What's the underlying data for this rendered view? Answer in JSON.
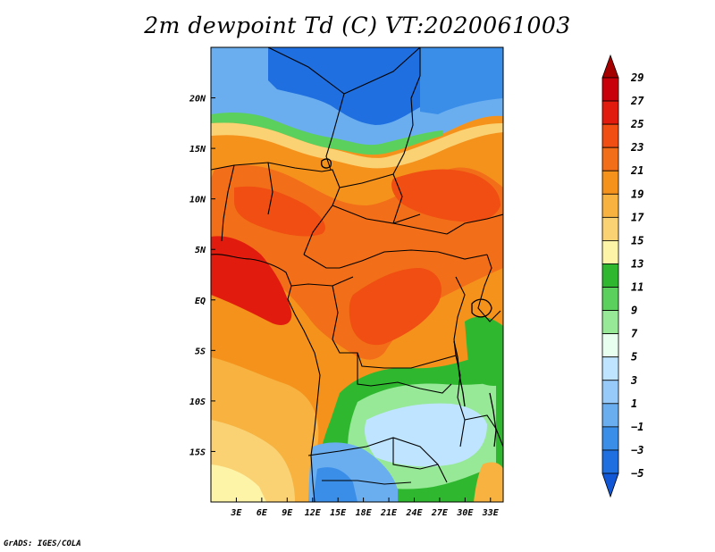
{
  "title": "2m dewpoint Td (C) VT:2020061003",
  "credit": "GrADS: IGES/COLA",
  "map": {
    "lon_range": [
      0,
      34.5
    ],
    "lat_range": [
      -20,
      25
    ],
    "lat_ticks": [
      {
        "value": 20,
        "label": "20N"
      },
      {
        "value": 15,
        "label": "15N"
      },
      {
        "value": 10,
        "label": "10N"
      },
      {
        "value": 5,
        "label": "5N"
      },
      {
        "value": 0,
        "label": "EQ"
      },
      {
        "value": -5,
        "label": "5S"
      },
      {
        "value": -10,
        "label": "10S"
      },
      {
        "value": -15,
        "label": "15S"
      }
    ],
    "lon_ticks": [
      {
        "value": 3,
        "label": "3E"
      },
      {
        "value": 6,
        "label": "6E"
      },
      {
        "value": 9,
        "label": "9E"
      },
      {
        "value": 12,
        "label": "12E"
      },
      {
        "value": 15,
        "label": "15E"
      },
      {
        "value": 18,
        "label": "18E"
      },
      {
        "value": 21,
        "label": "21E"
      },
      {
        "value": 24,
        "label": "24E"
      },
      {
        "value": 27,
        "label": "27E"
      },
      {
        "value": 30,
        "label": "30E"
      },
      {
        "value": 33,
        "label": "33E"
      }
    ]
  },
  "colorbar": {
    "levels": [
      "29",
      "27",
      "25",
      "23",
      "21",
      "19",
      "17",
      "15",
      "13",
      "11",
      "9",
      "7",
      "5",
      "3",
      "1",
      "−1",
      "−3",
      "−5"
    ],
    "colors": [
      "#a50000",
      "#c8000a",
      "#e11c0f",
      "#f04e12",
      "#f26e18",
      "#f5921c",
      "#f7b240",
      "#fad274",
      "#fdf4a8",
      "#2fb82f",
      "#5cd05c",
      "#97e897",
      "#e8fff0",
      "#bfe4ff",
      "#97caf8",
      "#6aaef0",
      "#3b8ee8",
      "#1f6fe0",
      "#1257d6"
    ]
  }
}
